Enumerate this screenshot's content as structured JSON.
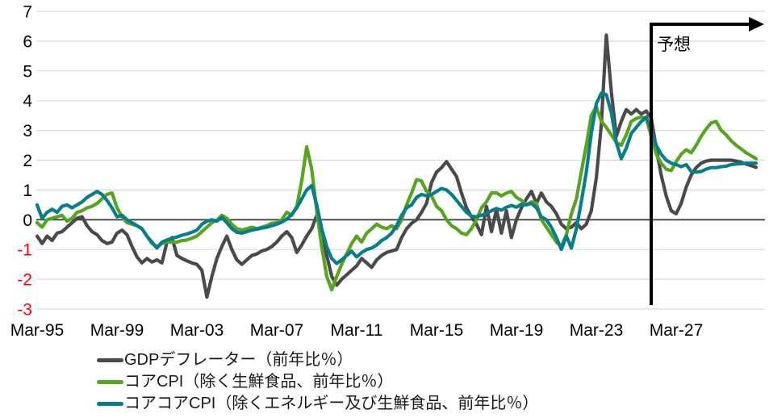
{
  "chart_data": {
    "type": "line",
    "title": "",
    "x_unit": "quarterly",
    "x_tick_labels": [
      "Mar-95",
      "Mar-99",
      "Mar-03",
      "Mar-07",
      "Mar-11",
      "Mar-15",
      "Mar-19",
      "Mar-23",
      "Mar-27"
    ],
    "x_tick_every_quarters": 16,
    "y_ticks": [
      7,
      6,
      5,
      4,
      3,
      2,
      1,
      0,
      -1,
      -2,
      -3
    ],
    "ylim": [
      -3,
      7
    ],
    "grid": true,
    "axis_tick_color_positive": "#000000",
    "axis_tick_color_negative": "#FF0000",
    "gridline_color": "#D9D9D9",
    "zero_line_color": "#404040",
    "legend_position": "bottom-left",
    "forecast": {
      "label": "予想",
      "start_index": 123
    },
    "series": [
      {
        "name": "GDPデフレーター（前年比％）",
        "color": "#4a4a4a",
        "values": [
          -0.55,
          -0.8,
          -0.55,
          -0.7,
          -0.45,
          -0.4,
          -0.25,
          -0.1,
          0.05,
          0.1,
          -0.2,
          -0.4,
          -0.5,
          -0.7,
          -0.8,
          -0.75,
          -0.45,
          -0.35,
          -0.5,
          -0.9,
          -1.25,
          -1.45,
          -1.3,
          -1.42,
          -1.35,
          -1.45,
          -0.75,
          -0.6,
          -1.2,
          -1.3,
          -1.38,
          -1.45,
          -1.5,
          -1.7,
          -2.6,
          -1.9,
          -1.3,
          -0.9,
          -0.55,
          -1.0,
          -1.35,
          -1.5,
          -1.35,
          -1.2,
          -1.15,
          -1.05,
          -1.0,
          -0.9,
          -0.75,
          -0.55,
          -0.4,
          -0.6,
          -1.1,
          -0.85,
          -0.55,
          -0.3,
          0.15,
          -0.5,
          -1.2,
          -1.9,
          -2.2,
          -2.0,
          -1.85,
          -1.7,
          -1.55,
          -1.3,
          -1.45,
          -1.6,
          -1.35,
          -1.2,
          -1.1,
          -1.05,
          -1.0,
          -0.6,
          -0.3,
          -0.12,
          0.0,
          0.25,
          0.55,
          1.25,
          1.6,
          1.75,
          1.95,
          1.7,
          1.45,
          0.9,
          0.4,
          0.1,
          -0.15,
          -0.5,
          0.45,
          -0.4,
          0.35,
          -0.45,
          0.3,
          -0.6,
          0.0,
          0.4,
          0.7,
          0.95,
          0.55,
          0.9,
          0.6,
          0.45,
          0.2,
          -0.15,
          -0.3,
          -0.25,
          -0.1,
          -0.3,
          -0.15,
          0.3,
          1.4,
          3.2,
          6.2,
          4.3,
          2.8,
          3.3,
          3.7,
          3.55,
          3.7,
          3.55,
          3.65,
          3.4,
          2.4,
          1.5,
          0.8,
          0.3,
          0.2,
          0.55,
          1.1,
          1.5,
          1.75,
          1.9,
          1.97,
          2.0,
          2.0,
          2.0,
          2.0,
          2.0,
          1.97,
          1.93,
          1.87,
          1.82,
          1.76
        ]
      },
      {
        "name": "コアCPI（除く生鮮食品、前年比％）",
        "color": "#56a41f",
        "values": [
          -0.1,
          -0.25,
          0.0,
          0.05,
          0.1,
          0.15,
          -0.05,
          0.05,
          0.25,
          0.3,
          0.4,
          0.45,
          0.55,
          0.7,
          0.85,
          0.9,
          0.4,
          0.1,
          -0.1,
          -0.15,
          -0.2,
          -0.3,
          -0.55,
          -0.8,
          -0.9,
          -0.8,
          -0.75,
          -0.75,
          -0.75,
          -0.7,
          -0.68,
          -0.62,
          -0.55,
          -0.4,
          -0.25,
          -0.1,
          -0.02,
          0.15,
          0.05,
          -0.15,
          -0.3,
          -0.35,
          -0.3,
          -0.25,
          -0.3,
          -0.25,
          -0.2,
          -0.12,
          -0.1,
          0.0,
          0.25,
          0.15,
          0.45,
          1.3,
          2.45,
          1.7,
          0.3,
          -0.9,
          -1.9,
          -2.35,
          -1.9,
          -1.5,
          -1.15,
          -0.8,
          -0.55,
          -0.75,
          -0.45,
          -0.3,
          -0.15,
          -0.25,
          -0.3,
          -0.2,
          -0.3,
          0.0,
          0.5,
          0.9,
          1.35,
          1.3,
          0.95,
          0.8,
          0.45,
          0.3,
          0.0,
          -0.2,
          -0.3,
          -0.45,
          -0.5,
          -0.3,
          0.0,
          0.4,
          0.6,
          0.9,
          0.9,
          0.8,
          0.9,
          0.95,
          0.75,
          0.65,
          0.5,
          0.6,
          0.55,
          0.0,
          -0.25,
          -0.5,
          -0.75,
          -0.9,
          -0.5,
          0.2,
          0.7,
          1.6,
          2.5,
          3.5,
          3.8,
          3.3,
          3.1,
          2.85,
          2.6,
          2.5,
          2.85,
          3.3,
          3.4,
          3.45,
          3.4,
          2.8,
          2.2,
          1.9,
          1.7,
          1.65,
          1.95,
          2.2,
          2.35,
          2.25,
          2.5,
          2.8,
          3.05,
          3.25,
          3.3,
          3.0,
          2.85,
          2.65,
          2.5,
          2.38,
          2.25,
          2.15,
          2.05
        ]
      },
      {
        "name": "コアコアCPI（除くエネルギー及び生鮮食品、前年比％）",
        "color": "#087d8c",
        "values": [
          0.5,
          0.05,
          0.25,
          0.35,
          0.25,
          0.45,
          0.5,
          0.4,
          0.5,
          0.6,
          0.75,
          0.85,
          0.95,
          0.85,
          0.65,
          0.4,
          0.1,
          0.15,
          0.0,
          -0.1,
          -0.2,
          -0.3,
          -0.55,
          -0.75,
          -0.95,
          -0.75,
          -0.68,
          -0.62,
          -0.58,
          -0.52,
          -0.48,
          -0.42,
          -0.35,
          -0.15,
          -0.05,
          0.0,
          -0.05,
          0.08,
          -0.1,
          -0.3,
          -0.42,
          -0.45,
          -0.4,
          -0.35,
          -0.32,
          -0.28,
          -0.25,
          -0.2,
          -0.15,
          -0.08,
          0.02,
          0.18,
          0.4,
          0.7,
          1.0,
          1.15,
          0.5,
          -0.3,
          -0.9,
          -1.3,
          -1.47,
          -1.35,
          -1.2,
          -1.06,
          -1.25,
          -1.1,
          -1.0,
          -0.95,
          -0.85,
          -0.7,
          -0.6,
          -0.45,
          -0.2,
          0.15,
          0.4,
          0.5,
          0.75,
          0.85,
          0.8,
          0.85,
          0.95,
          1.05,
          1.0,
          0.85,
          0.65,
          0.45,
          0.25,
          0.12,
          0.1,
          0.15,
          0.22,
          0.3,
          0.38,
          0.32,
          0.42,
          0.48,
          0.42,
          0.52,
          0.5,
          0.55,
          0.4,
          0.1,
          0.0,
          -0.25,
          -0.6,
          -1.0,
          -0.55,
          -0.95,
          -0.3,
          0.6,
          1.6,
          2.9,
          3.9,
          4.25,
          4.2,
          3.6,
          2.6,
          2.05,
          2.4,
          2.9,
          3.1,
          3.3,
          3.45,
          3.0,
          2.5,
          2.2,
          2.0,
          1.9,
          1.85,
          1.78,
          1.85,
          1.62,
          1.6,
          1.62,
          1.7,
          1.75,
          1.75,
          1.78,
          1.8,
          1.85,
          1.87,
          1.88,
          1.9,
          1.9,
          1.9
        ]
      }
    ]
  }
}
